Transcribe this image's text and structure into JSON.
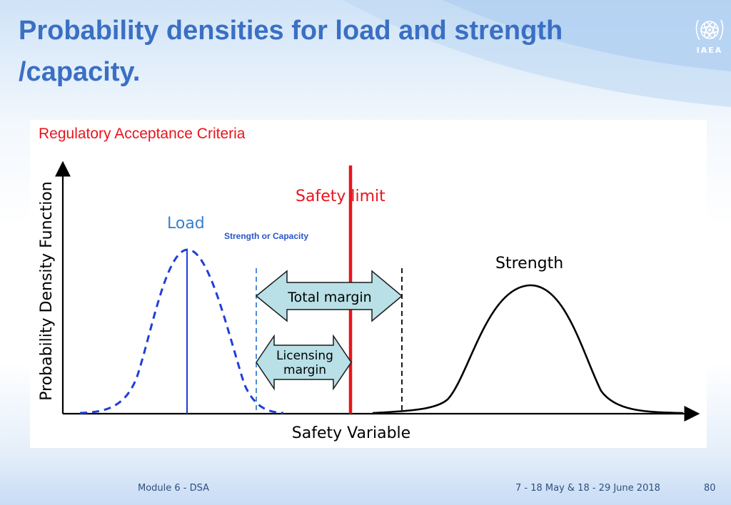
{
  "slide": {
    "title_line1": "Probability densities for load and strength",
    "title_line2": "/capacity.",
    "logo_text": "IAEA"
  },
  "figure": {
    "heading": "Regulatory Acceptance Criteria",
    "y_axis_label": "Probability Density Function",
    "x_axis_label": "Safety Variable",
    "load_label": "Load",
    "strength_label": "Strength",
    "safety_limit_label": "Safety limit",
    "strength_or_capacity_label": "Strength or Capacity",
    "total_margin_label": "Total margin",
    "licensing_margin_line1": "Licensing",
    "licensing_margin_line2": "margin",
    "colors": {
      "heading": "#e8141c",
      "load": "#1f3fd8",
      "load_label": "#3b7fd0",
      "safety_limit": "#e8141c",
      "strength": "#000000",
      "margin_arrow_fill": "#b8e0e6",
      "strength_capacity_text": "#2a55c8"
    }
  },
  "footer": {
    "module": "Module 6 - DSA",
    "dates": "7 - 18 May & 18 - 29 June 2018",
    "page": "80"
  }
}
